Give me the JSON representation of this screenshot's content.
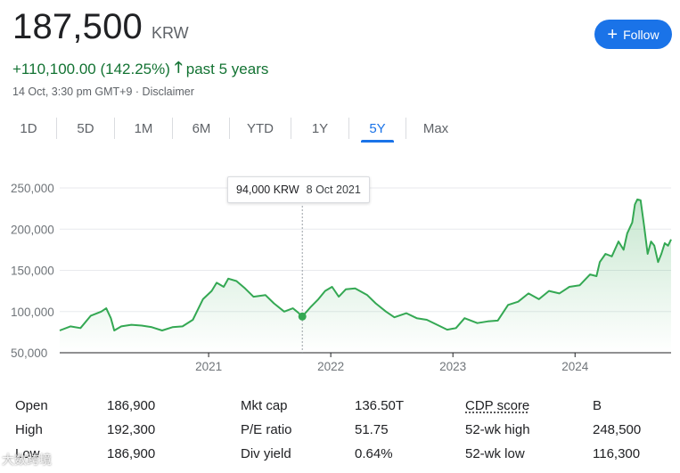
{
  "quote": {
    "price": "187,500",
    "currency": "KRW",
    "change": "+110,100.00 (142.25%)",
    "period": "past 5 years",
    "timestamp": "14 Oct, 3:30 pm GMT+9 · Disclaimer"
  },
  "follow_button": {
    "label": "Follow"
  },
  "tabs": [
    "1D",
    "5D",
    "1M",
    "6M",
    "YTD",
    "1Y",
    "5Y",
    "Max"
  ],
  "active_tab": "5Y",
  "tooltip": {
    "value": "94,000 KRW",
    "date": "8 Oct 2021"
  },
  "colors": {
    "line": "#34a853",
    "accent": "#1a73e8",
    "positive": "#137333"
  },
  "chart_data": {
    "type": "line",
    "x_range": [
      "2019-10-14",
      "2024-10-14"
    ],
    "ylim": [
      50000,
      250000
    ],
    "y_ticks": [
      "250,000",
      "200,000",
      "150,000",
      "100,000",
      "50,000"
    ],
    "x_ticks": [
      "2021",
      "2022",
      "2023",
      "2024"
    ],
    "grid": true,
    "highlight": {
      "date": "2021-10-08",
      "value": 94000
    },
    "series": [
      {
        "points": [
          [
            "2019-10-14",
            77000
          ],
          [
            "2019-11-15",
            82000
          ],
          [
            "2019-12-15",
            80000
          ],
          [
            "2020-01-15",
            95000
          ],
          [
            "2020-02-15",
            100000
          ],
          [
            "2020-03-01",
            104000
          ],
          [
            "2020-03-15",
            92000
          ],
          [
            "2020-03-25",
            77000
          ],
          [
            "2020-04-15",
            82000
          ],
          [
            "2020-05-15",
            84000
          ],
          [
            "2020-06-15",
            83000
          ],
          [
            "2020-07-15",
            81000
          ],
          [
            "2020-08-15",
            77000
          ],
          [
            "2020-09-15",
            81000
          ],
          [
            "2020-10-15",
            82000
          ],
          [
            "2020-11-15",
            90000
          ],
          [
            "2020-12-15",
            115000
          ],
          [
            "2021-01-10",
            125000
          ],
          [
            "2021-01-25",
            135000
          ],
          [
            "2021-02-15",
            130000
          ],
          [
            "2021-03-01",
            140000
          ],
          [
            "2021-03-25",
            137000
          ],
          [
            "2021-04-20",
            128000
          ],
          [
            "2021-05-15",
            118000
          ],
          [
            "2021-06-20",
            120000
          ],
          [
            "2021-07-15",
            110000
          ],
          [
            "2021-08-15",
            100000
          ],
          [
            "2021-09-10",
            104000
          ],
          [
            "2021-09-25",
            99000
          ],
          [
            "2021-10-08",
            94000
          ],
          [
            "2021-11-01",
            105000
          ],
          [
            "2021-11-25",
            115000
          ],
          [
            "2021-12-15",
            125000
          ],
          [
            "2022-01-05",
            130000
          ],
          [
            "2022-01-25",
            118000
          ],
          [
            "2022-02-15",
            127000
          ],
          [
            "2022-03-15",
            128000
          ],
          [
            "2022-04-20",
            120000
          ],
          [
            "2022-05-15",
            110000
          ],
          [
            "2022-06-15",
            100000
          ],
          [
            "2022-07-10",
            93000
          ],
          [
            "2022-08-15",
            98000
          ],
          [
            "2022-09-15",
            92000
          ],
          [
            "2022-10-15",
            90000
          ],
          [
            "2022-11-15",
            84000
          ],
          [
            "2022-12-15",
            78000
          ],
          [
            "2023-01-10",
            80000
          ],
          [
            "2023-02-05",
            92000
          ],
          [
            "2023-03-15",
            86000
          ],
          [
            "2023-04-15",
            88000
          ],
          [
            "2023-05-15",
            89000
          ],
          [
            "2023-06-15",
            108000
          ],
          [
            "2023-07-15",
            112000
          ],
          [
            "2023-08-15",
            122000
          ],
          [
            "2023-09-15",
            115000
          ],
          [
            "2023-10-15",
            125000
          ],
          [
            "2023-11-15",
            122000
          ],
          [
            "2023-12-15",
            130000
          ],
          [
            "2024-01-15",
            132000
          ],
          [
            "2024-02-15",
            145000
          ],
          [
            "2024-03-05",
            143000
          ],
          [
            "2024-03-15",
            160000
          ],
          [
            "2024-04-01",
            170000
          ],
          [
            "2024-04-20",
            167000
          ],
          [
            "2024-05-10",
            185000
          ],
          [
            "2024-05-25",
            175000
          ],
          [
            "2024-06-05",
            195000
          ],
          [
            "2024-06-20",
            208000
          ],
          [
            "2024-06-28",
            230000
          ],
          [
            "2024-07-05",
            236000
          ],
          [
            "2024-07-15",
            235000
          ],
          [
            "2024-07-25",
            205000
          ],
          [
            "2024-08-05",
            170000
          ],
          [
            "2024-08-15",
            185000
          ],
          [
            "2024-08-25",
            180000
          ],
          [
            "2024-09-05",
            160000
          ],
          [
            "2024-09-15",
            170000
          ],
          [
            "2024-09-25",
            183000
          ],
          [
            "2024-10-05",
            180000
          ],
          [
            "2024-10-14",
            187500
          ]
        ]
      }
    ]
  },
  "stats": [
    {
      "label": "Open",
      "value": "186,900"
    },
    {
      "label": "High",
      "value": "192,300"
    },
    {
      "label": "Low",
      "value": "186,900"
    },
    {
      "label": "Mkt cap",
      "value": "136.50T"
    },
    {
      "label": "P/E ratio",
      "value": "51.75"
    },
    {
      "label": "Div yield",
      "value": "0.64%"
    },
    {
      "label": "CDP score",
      "value": "B"
    },
    {
      "label": "52-wk high",
      "value": "248,500"
    },
    {
      "label": "52-wk low",
      "value": "116,300"
    }
  ],
  "watermark": "大数跨境"
}
